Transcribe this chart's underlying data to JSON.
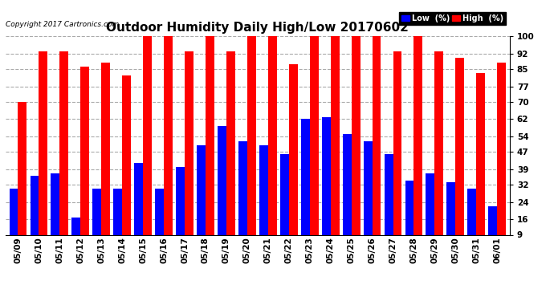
{
  "title": "Outdoor Humidity Daily High/Low 20170602",
  "copyright_text": "Copyright 2017 Cartronics.com",
  "dates": [
    "05/09",
    "05/10",
    "05/11",
    "05/12",
    "05/13",
    "05/14",
    "05/15",
    "05/16",
    "05/17",
    "05/18",
    "05/19",
    "05/20",
    "05/21",
    "05/22",
    "05/23",
    "05/24",
    "05/25",
    "05/26",
    "05/27",
    "05/28",
    "05/29",
    "05/30",
    "05/31",
    "06/01"
  ],
  "high_values": [
    70,
    93,
    93,
    86,
    88,
    82,
    100,
    100,
    93,
    100,
    93,
    100,
    100,
    87,
    100,
    100,
    100,
    100,
    93,
    100,
    93,
    90,
    83,
    88
  ],
  "low_values": [
    30,
    36,
    37,
    17,
    30,
    30,
    42,
    30,
    40,
    50,
    59,
    52,
    50,
    46,
    62,
    63,
    55,
    52,
    46,
    34,
    37,
    33,
    30,
    22
  ],
  "high_color": "#ff0000",
  "low_color": "#0000ff",
  "background_color": "#ffffff",
  "grid_color": "#aaaaaa",
  "yticks": [
    9,
    16,
    24,
    32,
    39,
    47,
    54,
    62,
    70,
    77,
    85,
    92,
    100
  ],
  "ymin": 9,
  "ymax": 100,
  "title_fontsize": 11,
  "tick_fontsize": 7.5,
  "bar_width": 0.42,
  "legend_low_label": "Low  (%)",
  "legend_high_label": "High  (%)"
}
